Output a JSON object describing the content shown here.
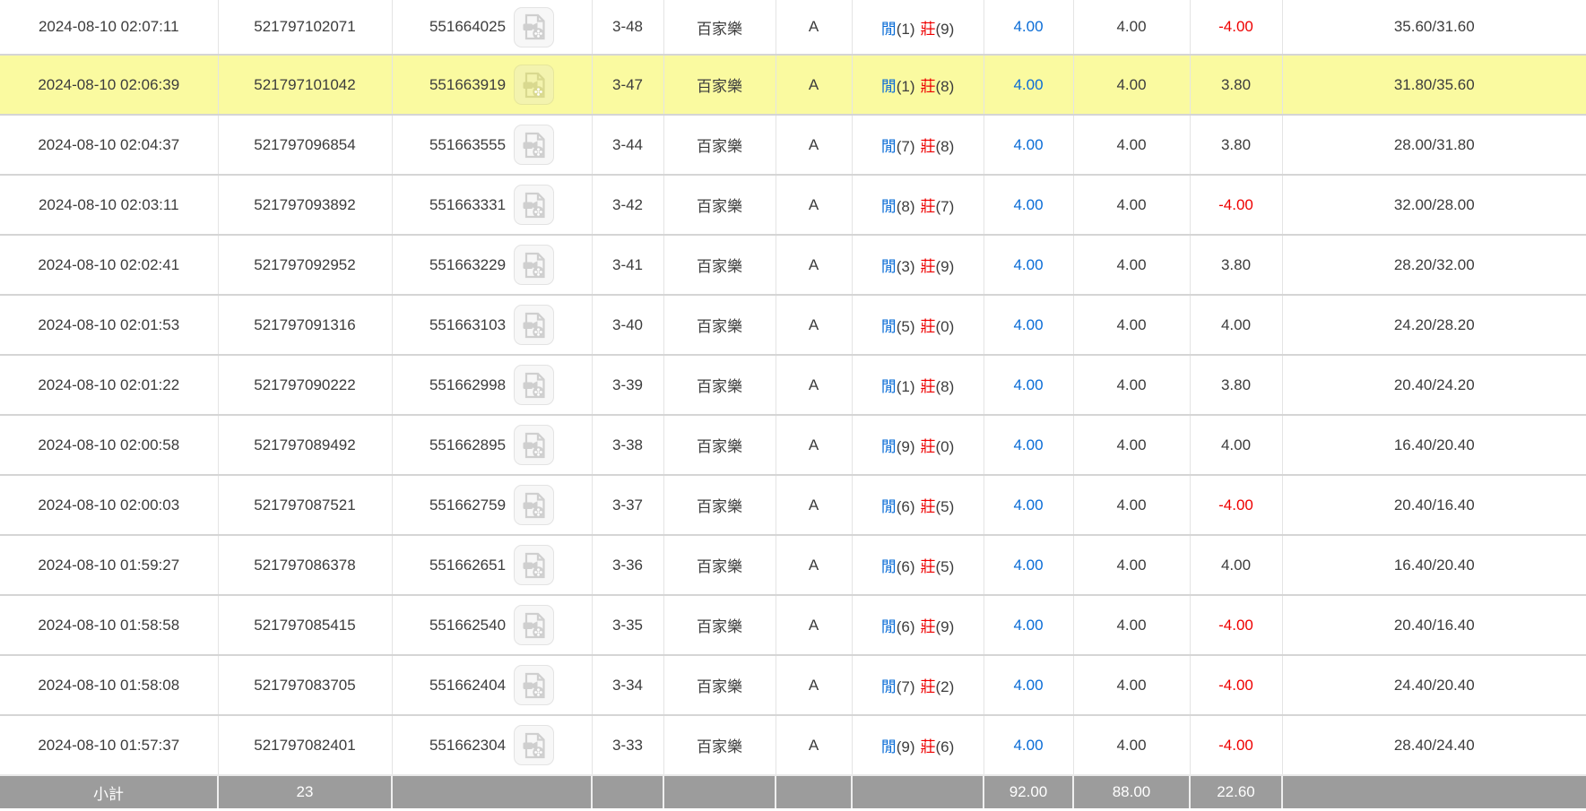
{
  "colors": {
    "accent_blue": "#0a6cd6",
    "loss_red": "#ee0000",
    "highlight_yellow": "#fafaa0",
    "footer_gray": "#9c9c9c"
  },
  "icons": {
    "video_record": "document-with-video-camera-and-film-reel"
  },
  "table": {
    "rows": [
      {
        "time": "2024-08-10 02:07:11",
        "bet_id": "521797102071",
        "game_id": "551664025",
        "round": "3-48",
        "game": "百家樂",
        "table": "A",
        "result": {
          "player_label": "閒",
          "player_score": "(1)",
          "banker_label": "莊",
          "banker_score": "(9)"
        },
        "bet": "4.00",
        "valid": "4.00",
        "winloss": "-4.00",
        "balance": "35.60/31.60",
        "highlighted": false
      },
      {
        "time": "2024-08-10 02:06:39",
        "bet_id": "521797101042",
        "game_id": "551663919",
        "round": "3-47",
        "game": "百家樂",
        "table": "A",
        "result": {
          "player_label": "閒",
          "player_score": "(1)",
          "banker_label": "莊",
          "banker_score": "(8)"
        },
        "bet": "4.00",
        "valid": "4.00",
        "winloss": "3.80",
        "balance": "31.80/35.60",
        "highlighted": true
      },
      {
        "time": "2024-08-10 02:04:37",
        "bet_id": "521797096854",
        "game_id": "551663555",
        "round": "3-44",
        "game": "百家樂",
        "table": "A",
        "result": {
          "player_label": "閒",
          "player_score": "(7)",
          "banker_label": "莊",
          "banker_score": "(8)"
        },
        "bet": "4.00",
        "valid": "4.00",
        "winloss": "3.80",
        "balance": "28.00/31.80",
        "highlighted": false
      },
      {
        "time": "2024-08-10 02:03:11",
        "bet_id": "521797093892",
        "game_id": "551663331",
        "round": "3-42",
        "game": "百家樂",
        "table": "A",
        "result": {
          "player_label": "閒",
          "player_score": "(8)",
          "banker_label": "莊",
          "banker_score": "(7)"
        },
        "bet": "4.00",
        "valid": "4.00",
        "winloss": "-4.00",
        "balance": "32.00/28.00",
        "highlighted": false
      },
      {
        "time": "2024-08-10 02:02:41",
        "bet_id": "521797092952",
        "game_id": "551663229",
        "round": "3-41",
        "game": "百家樂",
        "table": "A",
        "result": {
          "player_label": "閒",
          "player_score": "(3)",
          "banker_label": "莊",
          "banker_score": "(9)"
        },
        "bet": "4.00",
        "valid": "4.00",
        "winloss": "3.80",
        "balance": "28.20/32.00",
        "highlighted": false
      },
      {
        "time": "2024-08-10 02:01:53",
        "bet_id": "521797091316",
        "game_id": "551663103",
        "round": "3-40",
        "game": "百家樂",
        "table": "A",
        "result": {
          "player_label": "閒",
          "player_score": "(5)",
          "banker_label": "莊",
          "banker_score": "(0)"
        },
        "bet": "4.00",
        "valid": "4.00",
        "winloss": "4.00",
        "balance": "24.20/28.20",
        "highlighted": false
      },
      {
        "time": "2024-08-10 02:01:22",
        "bet_id": "521797090222",
        "game_id": "551662998",
        "round": "3-39",
        "game": "百家樂",
        "table": "A",
        "result": {
          "player_label": "閒",
          "player_score": "(1)",
          "banker_label": "莊",
          "banker_score": "(8)"
        },
        "bet": "4.00",
        "valid": "4.00",
        "winloss": "3.80",
        "balance": "20.40/24.20",
        "highlighted": false
      },
      {
        "time": "2024-08-10 02:00:58",
        "bet_id": "521797089492",
        "game_id": "551662895",
        "round": "3-38",
        "game": "百家樂",
        "table": "A",
        "result": {
          "player_label": "閒",
          "player_score": "(9)",
          "banker_label": "莊",
          "banker_score": "(0)"
        },
        "bet": "4.00",
        "valid": "4.00",
        "winloss": "4.00",
        "balance": "16.40/20.40",
        "highlighted": false
      },
      {
        "time": "2024-08-10 02:00:03",
        "bet_id": "521797087521",
        "game_id": "551662759",
        "round": "3-37",
        "game": "百家樂",
        "table": "A",
        "result": {
          "player_label": "閒",
          "player_score": "(6)",
          "banker_label": "莊",
          "banker_score": "(5)"
        },
        "bet": "4.00",
        "valid": "4.00",
        "winloss": "-4.00",
        "balance": "20.40/16.40",
        "highlighted": false
      },
      {
        "time": "2024-08-10 01:59:27",
        "bet_id": "521797086378",
        "game_id": "551662651",
        "round": "3-36",
        "game": "百家樂",
        "table": "A",
        "result": {
          "player_label": "閒",
          "player_score": "(6)",
          "banker_label": "莊",
          "banker_score": "(5)"
        },
        "bet": "4.00",
        "valid": "4.00",
        "winloss": "4.00",
        "balance": "16.40/20.40",
        "highlighted": false
      },
      {
        "time": "2024-08-10 01:58:58",
        "bet_id": "521797085415",
        "game_id": "551662540",
        "round": "3-35",
        "game": "百家樂",
        "table": "A",
        "result": {
          "player_label": "閒",
          "player_score": "(6)",
          "banker_label": "莊",
          "banker_score": "(9)"
        },
        "bet": "4.00",
        "valid": "4.00",
        "winloss": "-4.00",
        "balance": "20.40/16.40",
        "highlighted": false
      },
      {
        "time": "2024-08-10 01:58:08",
        "bet_id": "521797083705",
        "game_id": "551662404",
        "round": "3-34",
        "game": "百家樂",
        "table": "A",
        "result": {
          "player_label": "閒",
          "player_score": "(7)",
          "banker_label": "莊",
          "banker_score": "(2)"
        },
        "bet": "4.00",
        "valid": "4.00",
        "winloss": "-4.00",
        "balance": "24.40/20.40",
        "highlighted": false
      },
      {
        "time": "2024-08-10 01:57:37",
        "bet_id": "521797082401",
        "game_id": "551662304",
        "round": "3-33",
        "game": "百家樂",
        "table": "A",
        "result": {
          "player_label": "閒",
          "player_score": "(9)",
          "banker_label": "莊",
          "banker_score": "(6)"
        },
        "bet": "4.00",
        "valid": "4.00",
        "winloss": "-4.00",
        "balance": "28.40/24.40",
        "highlighted": false
      }
    ],
    "footer": {
      "label": "小計",
      "count": "23",
      "bet_total": "92.00",
      "valid_total": "88.00",
      "winloss_total": "22.60"
    }
  }
}
